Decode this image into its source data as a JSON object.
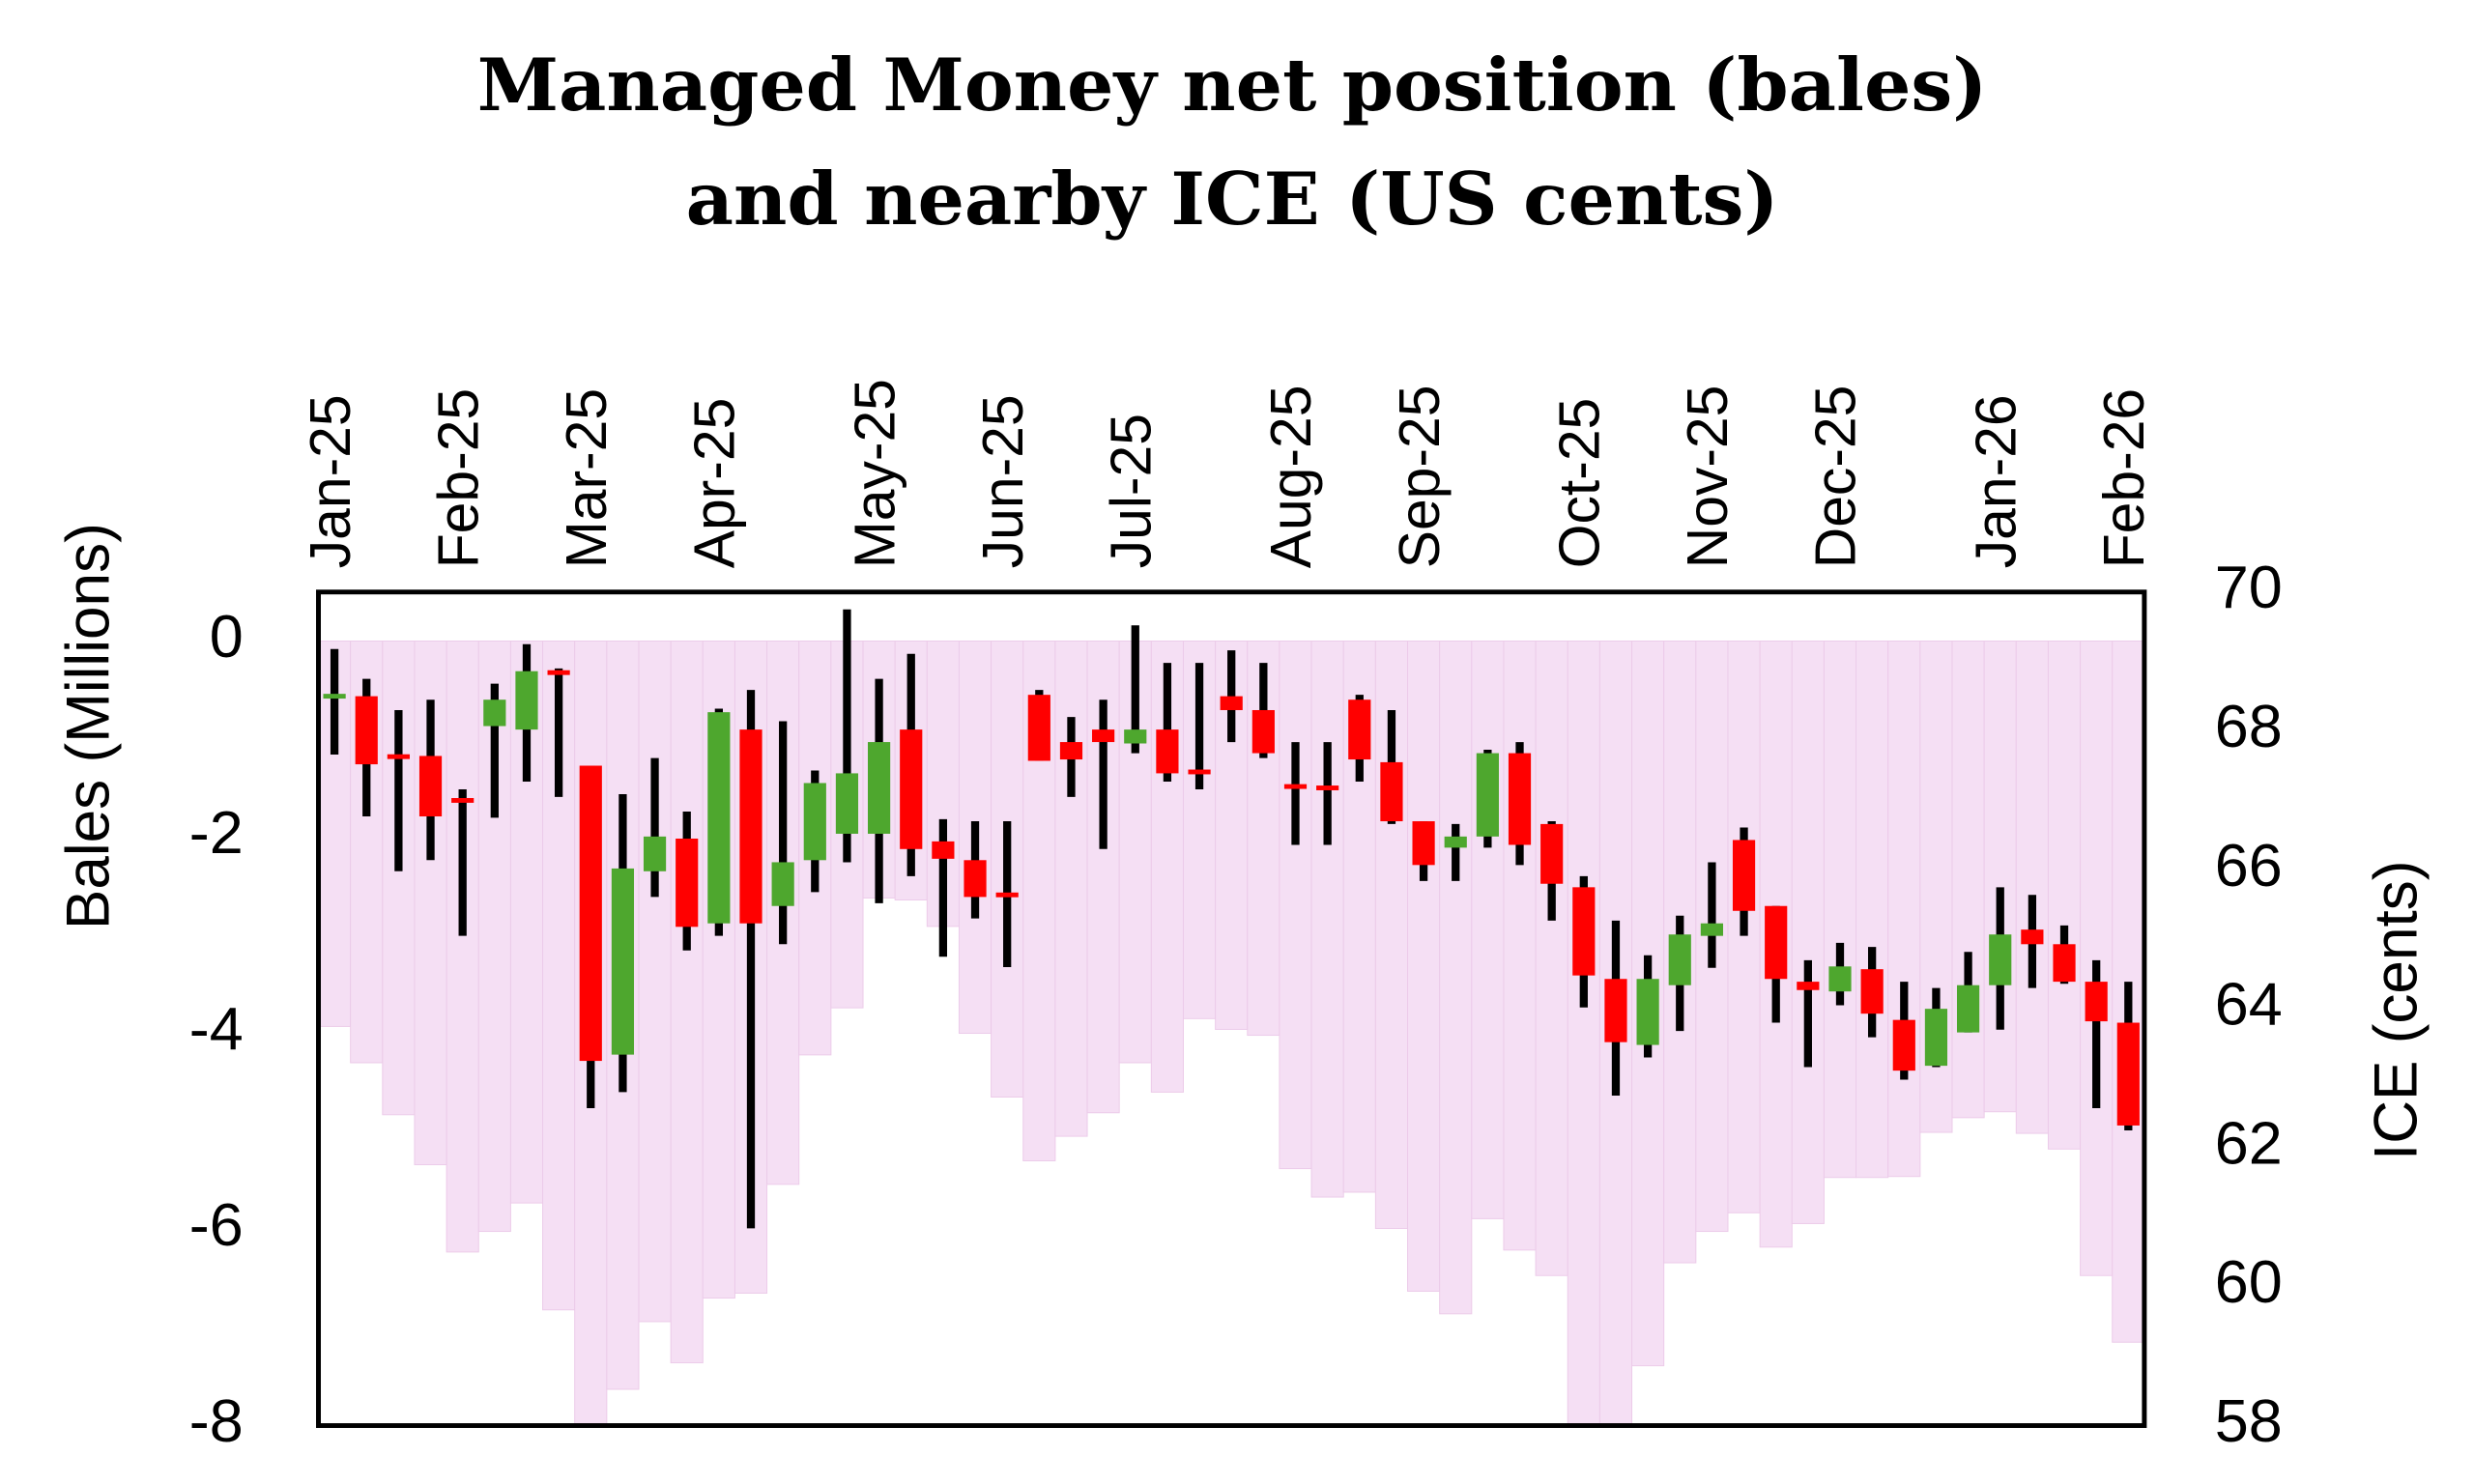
{
  "chart_data": {
    "type": "combo",
    "title": [
      "Managed Money net position (bales)",
      "and nearby ICE (US cents)"
    ],
    "ylabel": "Bales (Millions)",
    "y2label": "ICE (cents)",
    "categories": [
      "Jan-25",
      null,
      null,
      null,
      "Feb-25",
      null,
      null,
      null,
      "Mar-25",
      null,
      null,
      null,
      "Apr-25",
      null,
      null,
      null,
      null,
      "May-25",
      null,
      null,
      null,
      "Jun-25",
      null,
      null,
      null,
      "Jul-25",
      null,
      null,
      null,
      null,
      "Aug-25",
      null,
      null,
      null,
      "Sep-25",
      null,
      null,
      null,
      null,
      "Oct-25",
      null,
      null,
      null,
      "Nov-25",
      null,
      null,
      null,
      "Dec-25",
      null,
      null,
      null,
      null,
      "Jan-26",
      null,
      null,
      null,
      "Feb-26"
    ],
    "ylim": [
      -8,
      0.5
    ],
    "yticks": [
      0,
      -2,
      -4,
      -6,
      -8
    ],
    "y2lim": [
      58,
      70
    ],
    "y2ticks": [
      58,
      60,
      62,
      64,
      66,
      68,
      70
    ],
    "series": [
      {
        "type": "bar",
        "color": "#f5dff4",
        "values": [
          -3.93,
          -4.3,
          -4.83,
          -5.34,
          -6.23,
          -6.02,
          -5.73,
          -6.82,
          -7.98,
          -7.63,
          -6.94,
          -7.36,
          -6.7,
          -6.65,
          -5.54,
          -4.22,
          -3.74,
          -2.62,
          -2.64,
          -2.91,
          -4.0,
          -4.65,
          -5.3,
          -5.05,
          -4.81,
          -4.3,
          -4.6,
          -3.85,
          -3.96,
          -4.02,
          -5.38,
          -5.67,
          -5.62,
          -5.99,
          -6.63,
          -6.86,
          -5.89,
          -6.21,
          -6.47,
          -7.98,
          -7.98,
          -7.39,
          -6.34,
          -6.02,
          -5.83,
          -6.18,
          -5.94,
          -5.47,
          -5.47,
          -5.46,
          -5.01,
          -4.86,
          -4.8,
          -5.02,
          -5.18,
          -6.47,
          -7.15
        ]
      },
      {
        "type": "candlestick",
        "axis": "y2",
        "up_color": "#4ea72e",
        "down_color": "#ff0000",
        "wick_color": "#000000",
        "open": [
          68.48,
          68.5,
          67.64,
          67.64,
          67.02,
          68.07,
          68.02,
          68.86,
          67.5,
          63.34,
          65.98,
          66.45,
          65.23,
          68.02,
          65.48,
          66.14,
          66.52,
          66.52,
          68.02,
          66.41,
          66.14,
          65.66,
          68.52,
          67.84,
          68.02,
          67.82,
          68.02,
          67.43,
          68.5,
          68.3,
          67.22,
          67.2,
          68.45,
          67.55,
          66.7,
          66.32,
          66.48,
          67.68,
          66.66,
          65.75,
          64.43,
          63.48,
          64.34,
          65.05,
          66.43,
          65.48,
          64.39,
          64.25,
          64.57,
          63.84,
          63.18,
          63.66,
          64.34,
          65.14,
          64.93,
          64.39,
          63.8
        ],
        "high": [
          69.18,
          68.75,
          68.3,
          68.45,
          67.16,
          68.68,
          69.25,
          68.9,
          67.5,
          67.09,
          67.61,
          66.84,
          68.32,
          68.59,
          68.14,
          67.43,
          69.75,
          68.75,
          69.11,
          66.73,
          66.7,
          66.7,
          68.59,
          68.2,
          68.45,
          69.52,
          68.98,
          68.98,
          69.16,
          68.98,
          67.84,
          67.84,
          68.52,
          68.3,
          66.7,
          66.66,
          67.73,
          67.84,
          66.7,
          65.91,
          65.27,
          64.77,
          65.34,
          66.11,
          66.61,
          65.48,
          64.7,
          64.95,
          64.89,
          64.39,
          64.3,
          64.82,
          65.75,
          65.64,
          65.2,
          64.7,
          64.39
        ],
        "low": [
          67.66,
          66.77,
          65.98,
          66.14,
          65.05,
          66.75,
          67.27,
          67.05,
          62.57,
          62.8,
          65.61,
          64.84,
          65.05,
          60.84,
          64.93,
          65.68,
          66.11,
          65.52,
          65.91,
          64.75,
          65.3,
          64.6,
          67.57,
          67.05,
          66.3,
          67.68,
          67.27,
          67.16,
          67.84,
          67.61,
          66.36,
          66.36,
          67.27,
          66.66,
          65.84,
          65.84,
          66.32,
          66.07,
          65.27,
          64.02,
          62.75,
          63.3,
          63.68,
          64.59,
          65.05,
          63.8,
          63.16,
          64.05,
          63.59,
          62.98,
          63.16,
          63.66,
          63.7,
          64.3,
          64.36,
          62.57,
          62.25
        ],
        "close": [
          68.52,
          67.52,
          67.62,
          66.77,
          66.98,
          68.45,
          68.86,
          68.82,
          63.25,
          66.02,
          66.48,
          65.18,
          68.27,
          65.23,
          66.11,
          67.25,
          67.39,
          67.84,
          66.3,
          66.16,
          65.61,
          65.62,
          67.57,
          67.59,
          67.84,
          68.02,
          67.39,
          67.39,
          68.3,
          67.68,
          67.18,
          67.16,
          67.59,
          66.7,
          66.07,
          66.48,
          67.68,
          66.36,
          65.8,
          64.48,
          63.52,
          64.43,
          65.07,
          65.23,
          65.41,
          64.43,
          64.27,
          64.61,
          63.93,
          63.11,
          64.0,
          64.34,
          65.07,
          64.93,
          64.39,
          63.82,
          62.32
        ]
      }
    ]
  }
}
